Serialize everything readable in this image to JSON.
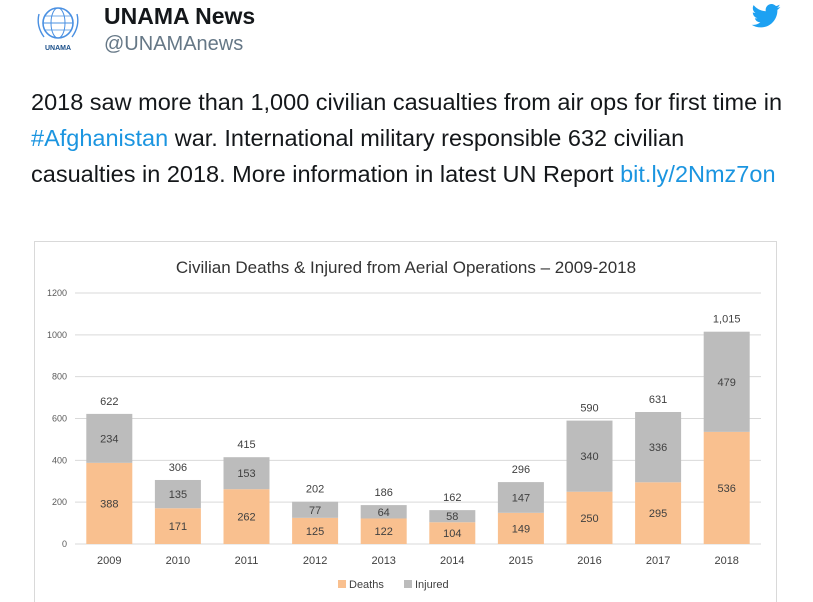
{
  "tweet": {
    "display_name": "UNAMA News",
    "handle": "@UNAMAnews",
    "avatar_text": "UNAMA",
    "text_part1": "2018 saw more than 1,000 civilian casualties from air ops for first time in ",
    "hashtag": "#Afghanistan",
    "text_part2": " war. International military responsible 632 civilian casualties in 2018. More information in latest UN Report ",
    "link": "bit.ly/2Nmz7on"
  },
  "colors": {
    "deaths": "#f9c08f",
    "injured": "#bcbcbc",
    "link": "#1b95e0",
    "twitter": "#1da1f2"
  },
  "chart_data": {
    "type": "bar",
    "stacked": true,
    "title": "Civilian Deaths & Injured from Aerial Operations – 2009-2018",
    "categories": [
      "2009",
      "2010",
      "2011",
      "2012",
      "2013",
      "2014",
      "2015",
      "2016",
      "2017",
      "2018"
    ],
    "series": [
      {
        "name": "Deaths",
        "values": [
          388,
          171,
          262,
          125,
          122,
          104,
          149,
          250,
          295,
          536
        ]
      },
      {
        "name": "Injured",
        "values": [
          234,
          135,
          153,
          77,
          64,
          58,
          147,
          340,
          336,
          479
        ]
      }
    ],
    "totals": [
      "622",
      "306",
      "415",
      "202",
      "186",
      "162",
      "296",
      "590",
      "631",
      "1,015"
    ],
    "ylim": [
      0,
      1200
    ],
    "yticks": [
      0,
      200,
      400,
      600,
      800,
      1000,
      1200
    ],
    "grid": true,
    "legend": "bottom"
  }
}
